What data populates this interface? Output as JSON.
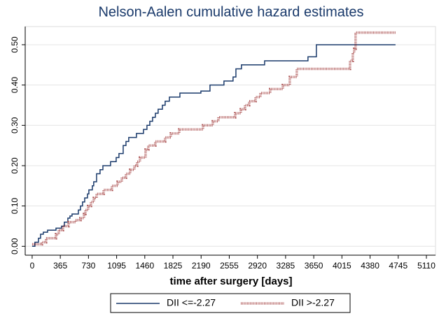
{
  "chart_data": {
    "type": "step",
    "title": "Nelson-Aalen cumulative hazard estimates",
    "x_label": "time after surgery [days]",
    "xlim": [
      -90,
      5228
    ],
    "ylim": [
      -0.022,
      0.545
    ],
    "xticks": [
      0,
      365,
      730,
      1095,
      1460,
      1825,
      2190,
      2555,
      2920,
      3285,
      3650,
      4015,
      4380,
      4745,
      5110
    ],
    "yticks": [
      {
        "value": 0,
        "label": "0.00"
      },
      {
        "value": 0.1,
        "label": "0.10"
      },
      {
        "value": 0.2,
        "label": "0.20"
      },
      {
        "value": 0.3,
        "label": "0.30"
      },
      {
        "value": 0.4,
        "label": "0.40"
      },
      {
        "value": 0.5,
        "label": "0.50"
      }
    ],
    "grid": true,
    "legend": "bottom",
    "series": [
      {
        "name": "DII <=-2.27",
        "color": "#1a3a6b",
        "style": "solid",
        "x": [
          0,
          36,
          82,
          109,
          145,
          200,
          309,
          381,
          417,
          463,
          490,
          517,
          599,
          626,
          653,
          681,
          717,
          735,
          780,
          798,
          835,
          880,
          917,
          1016,
          1089,
          1125,
          1180,
          1216,
          1252,
          1352,
          1443,
          1488,
          1525,
          1561,
          1597,
          1633,
          1688,
          1724,
          1779,
          1915,
          2187,
          2305,
          2486,
          2604,
          2641,
          2713,
          3013,
          3575,
          3684,
          4710
        ],
        "values": [
          0,
          0.01,
          0.02,
          0.03,
          0.035,
          0.04,
          0.045,
          0.05,
          0.06,
          0.07,
          0.075,
          0.08,
          0.09,
          0.1,
          0.11,
          0.12,
          0.13,
          0.14,
          0.15,
          0.16,
          0.18,
          0.19,
          0.2,
          0.21,
          0.22,
          0.23,
          0.25,
          0.26,
          0.27,
          0.28,
          0.29,
          0.3,
          0.31,
          0.32,
          0.33,
          0.34,
          0.35,
          0.36,
          0.37,
          0.38,
          0.385,
          0.4,
          0.41,
          0.42,
          0.44,
          0.45,
          0.46,
          0.47,
          0.5,
          0.5
        ]
      },
      {
        "name": "DII >-2.27",
        "color": "#b05a5a",
        "style": "dotted",
        "x": [
          0,
          127,
          181,
          309,
          345,
          399,
          472,
          563,
          626,
          672,
          690,
          726,
          762,
          799,
          835,
          926,
          1034,
          1107,
          1162,
          1216,
          1270,
          1325,
          1361,
          1397,
          1470,
          1506,
          1597,
          1724,
          1797,
          1906,
          2214,
          2341,
          2414,
          2632,
          2704,
          2759,
          2813,
          2895,
          2958,
          3085,
          3249,
          3339,
          3430,
          4120,
          4156,
          4174,
          4192,
          4710
        ],
        "values": [
          0.005,
          0.01,
          0.02,
          0.03,
          0.04,
          0.05,
          0.06,
          0.065,
          0.07,
          0.08,
          0.09,
          0.1,
          0.11,
          0.12,
          0.13,
          0.14,
          0.15,
          0.16,
          0.17,
          0.18,
          0.19,
          0.2,
          0.21,
          0.22,
          0.24,
          0.25,
          0.26,
          0.27,
          0.28,
          0.29,
          0.3,
          0.31,
          0.32,
          0.33,
          0.34,
          0.35,
          0.36,
          0.37,
          0.38,
          0.39,
          0.4,
          0.42,
          0.44,
          0.46,
          0.48,
          0.49,
          0.53,
          0.53
        ]
      }
    ]
  }
}
